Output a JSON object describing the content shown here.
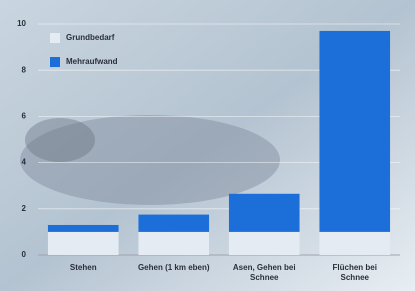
{
  "chart_data": {
    "type": "bar",
    "stacked": true,
    "categories": [
      "Stehen",
      "Gehen (1 km eben)",
      "Asen, Gehen bei Schnee",
      "Flüchen bei Schnee"
    ],
    "series": [
      {
        "name": "Grundbedarf",
        "color": "#e4ebf2",
        "values": [
          1,
          1,
          1,
          1
        ]
      },
      {
        "name": "Mehraufwand",
        "color": "#1c6fd8",
        "values": [
          0.3,
          0.75,
          1.65,
          8.7
        ]
      }
    ],
    "ylim": [
      0,
      10
    ],
    "yticks": [
      0,
      2,
      4,
      6,
      8,
      10
    ],
    "grid": true
  }
}
